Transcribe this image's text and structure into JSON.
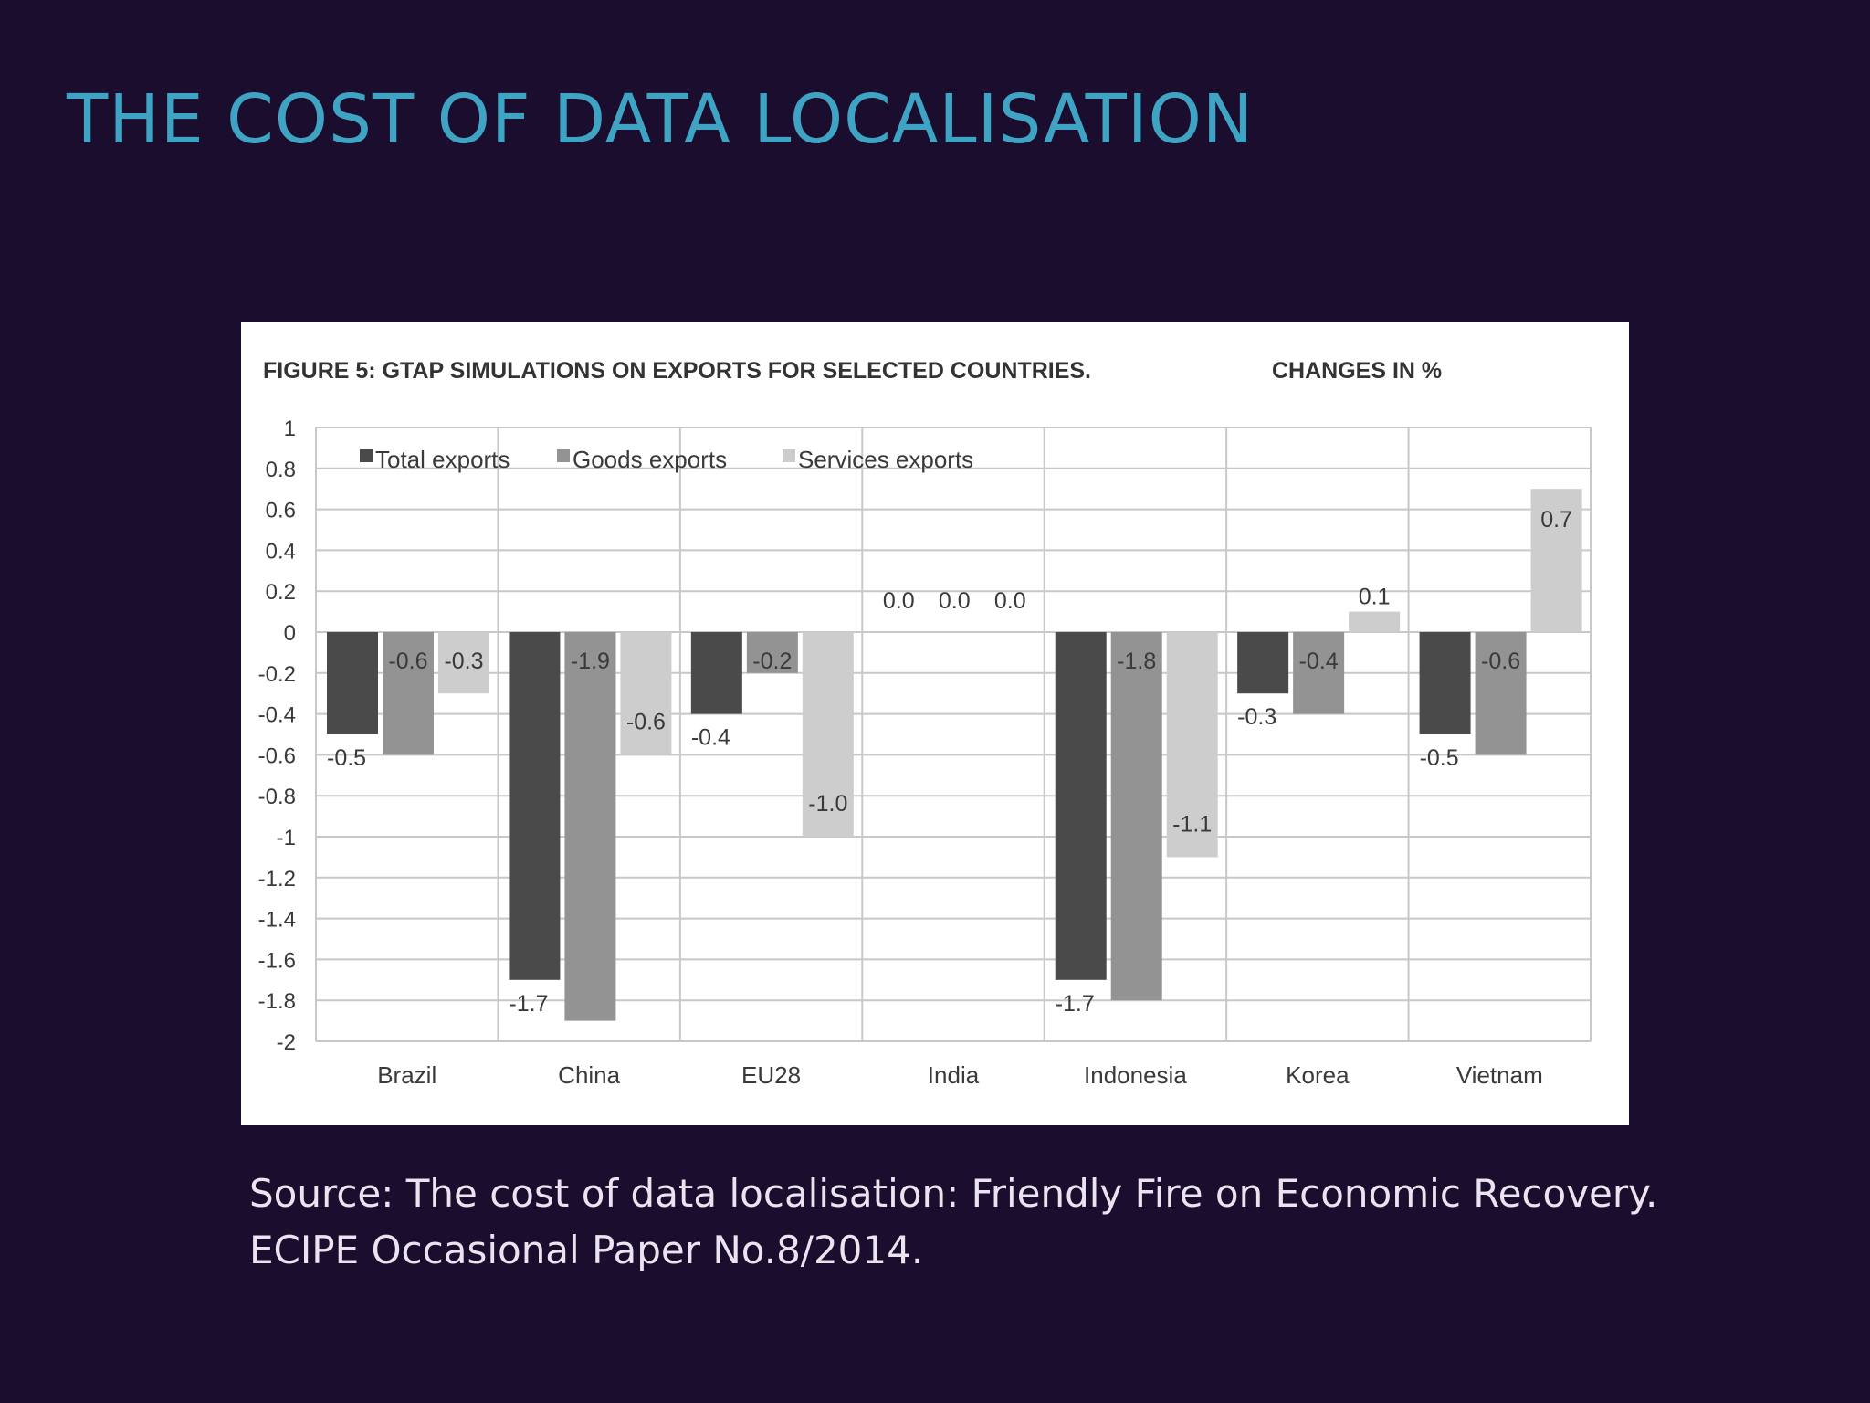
{
  "slide": {
    "title": "THE COST OF DATA LOCALISATION",
    "source_line1": "Source: The cost of data localisation: Friendly Fire on Economic Recovery.",
    "source_line2": "ECIPE Occasional Paper No.8/2014."
  },
  "colors": {
    "background": "#1b0d2e",
    "title": "#3fa3c4",
    "source_text": "#e9e4ef",
    "total_exports": "#4a4a4a",
    "goods_exports": "#939393",
    "services_exports": "#cdcdcd",
    "grid": "#c8c8c8",
    "label_text": "#3a3a3a"
  },
  "chart_data": {
    "type": "bar",
    "title": "FIGURE 5: GTAP SIMULATIONS ON EXPORTS FOR SELECTED COUNTRIES.",
    "subtitle": "CHANGES IN %",
    "categories": [
      "Brazil",
      "China",
      "EU28",
      "India",
      "Indonesia",
      "Korea",
      "Vietnam"
    ],
    "series": [
      {
        "name": "Total exports",
        "values": [
          -0.5,
          -1.7,
          -0.4,
          0.0,
          -1.7,
          -0.3,
          -0.5
        ]
      },
      {
        "name": "Goods exports",
        "values": [
          -0.6,
          -1.9,
          -0.2,
          0.0,
          -1.8,
          -0.4,
          -0.6
        ]
      },
      {
        "name": "Services exports",
        "values": [
          -0.3,
          -0.6,
          -1.0,
          0.0,
          -1.1,
          0.1,
          0.7
        ]
      }
    ],
    "data_labels": [
      [
        "-0.5",
        "-1.7",
        "-0.4",
        "0.0",
        "-1.7",
        "-0.3",
        "-0.5"
      ],
      [
        "-0.6",
        "-1.9",
        "-0.2",
        "0.0",
        "-1.8",
        "-0.4",
        "-0.6"
      ],
      [
        "-0.3",
        "-0.6",
        "-1.0",
        "0.0",
        "-1.1",
        "0.1",
        "0.7"
      ]
    ],
    "y_ticks": [
      "1",
      "0.8",
      "0.6",
      "0.4",
      "0.2",
      "0",
      "-0.2",
      "-0.4",
      "-0.6",
      "-0.8",
      "-1",
      "-1.2",
      "-1.4",
      "-1.6",
      "-1.8",
      "-2"
    ],
    "xlabel": "",
    "ylabel": "",
    "ylim": [
      -2,
      1
    ],
    "grid": true,
    "legend_position": "top-left"
  }
}
